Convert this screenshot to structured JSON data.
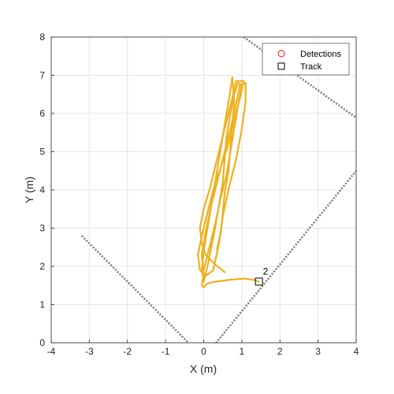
{
  "chart_data": {
    "type": "line",
    "xlabel": "X (m)",
    "ylabel": "Y (m)",
    "xlim": [
      -4,
      4
    ],
    "ylim": [
      0,
      8
    ],
    "xticks": [
      -4,
      -3,
      -2,
      -1,
      0,
      1,
      2,
      3,
      4
    ],
    "yticks": [
      0,
      1,
      2,
      3,
      4,
      5,
      6,
      7,
      8
    ],
    "grid": true,
    "legend": {
      "placement": "top-right",
      "entries": [
        {
          "label": "Detections",
          "marker": "circle",
          "color": "#ff0000"
        },
        {
          "label": "Track",
          "marker": "square",
          "color": "#000000"
        }
      ]
    },
    "coverage_boundary": {
      "style": "dotted",
      "color": "#777777",
      "points": [
        [
          -3.2,
          2.8
        ],
        [
          0.0,
          -0.4
        ],
        [
          4.0,
          4.5
        ],
        [
          4.4,
          5.6
        ],
        [
          1.05,
          8.0
        ]
      ]
    },
    "trajectories": [
      {
        "color": "#edb120",
        "points": [
          [
            0.55,
            1.85
          ],
          [
            0.3,
            2.05
          ],
          [
            0.05,
            2.3
          ],
          [
            -0.05,
            2.6
          ],
          [
            -0.1,
            3.0
          ],
          [
            0.0,
            3.5
          ],
          [
            0.15,
            4.0
          ],
          [
            0.3,
            4.6
          ],
          [
            0.45,
            5.2
          ],
          [
            0.6,
            5.8
          ],
          [
            0.75,
            6.4
          ],
          [
            0.85,
            6.85
          ],
          [
            1.05,
            6.85
          ],
          [
            0.95,
            6.4
          ],
          [
            0.8,
            5.8
          ],
          [
            0.65,
            5.2
          ],
          [
            0.45,
            4.6
          ],
          [
            0.25,
            4.0
          ],
          [
            0.1,
            3.4
          ],
          [
            -0.05,
            2.8
          ],
          [
            -0.15,
            2.3
          ],
          [
            -0.1,
            1.9
          ],
          [
            0.05,
            1.75
          ],
          [
            0.25,
            1.9
          ],
          [
            0.4,
            2.6
          ],
          [
            0.5,
            3.3
          ],
          [
            0.65,
            4.0
          ],
          [
            0.85,
            4.8
          ],
          [
            1.0,
            5.6
          ],
          [
            1.1,
            6.3
          ],
          [
            1.1,
            6.8
          ],
          [
            0.95,
            6.75
          ],
          [
            0.8,
            6.0
          ],
          [
            0.6,
            5.2
          ],
          [
            0.4,
            4.4
          ],
          [
            0.2,
            3.6
          ],
          [
            0.05,
            2.9
          ],
          [
            -0.05,
            2.3
          ],
          [
            0.0,
            1.8
          ],
          [
            -0.05,
            1.5
          ],
          [
            0.0,
            1.45
          ],
          [
            0.1,
            1.55
          ],
          [
            0.3,
            1.6
          ],
          [
            0.7,
            1.65
          ],
          [
            1.05,
            1.68
          ],
          [
            1.3,
            1.65
          ],
          [
            1.45,
            1.6
          ]
        ]
      },
      {
        "color": "#edb120",
        "points": [
          [
            0.0,
            1.6
          ],
          [
            0.1,
            2.0
          ],
          [
            0.2,
            2.5
          ],
          [
            0.3,
            3.0
          ],
          [
            0.4,
            3.6
          ],
          [
            0.5,
            4.2
          ],
          [
            0.55,
            4.8
          ],
          [
            0.6,
            5.4
          ],
          [
            0.7,
            6.0
          ],
          [
            0.8,
            6.5
          ],
          [
            0.9,
            6.8
          ],
          [
            1.0,
            6.75
          ],
          [
            0.9,
            6.2
          ],
          [
            0.8,
            5.6
          ],
          [
            0.7,
            5.0
          ],
          [
            0.6,
            4.4
          ],
          [
            0.45,
            3.8
          ],
          [
            0.3,
            3.1
          ],
          [
            0.15,
            2.5
          ],
          [
            0.0,
            1.9
          ]
        ]
      },
      {
        "color": "#edb120",
        "points": [
          [
            0.35,
            2.45
          ],
          [
            0.45,
            2.9
          ],
          [
            0.5,
            3.4
          ],
          [
            0.55,
            3.9
          ],
          [
            0.65,
            4.5
          ],
          [
            0.7,
            5.1
          ],
          [
            0.75,
            5.7
          ],
          [
            0.8,
            6.3
          ],
          [
            0.75,
            6.95
          ],
          [
            0.7,
            6.6
          ],
          [
            0.6,
            6.0
          ],
          [
            0.5,
            5.4
          ],
          [
            0.4,
            4.8
          ],
          [
            0.3,
            4.2
          ],
          [
            0.2,
            3.6
          ],
          [
            0.1,
            3.0
          ],
          [
            0.0,
            2.4
          ],
          [
            -0.05,
            1.9
          ],
          [
            0.0,
            1.65
          ]
        ]
      }
    ],
    "tracks": [
      {
        "id": "2",
        "x": 1.45,
        "y": 1.6
      }
    ]
  }
}
